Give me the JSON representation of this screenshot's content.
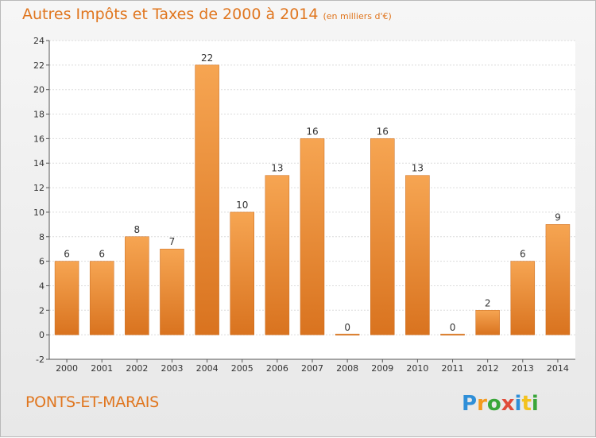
{
  "header": {
    "title": "Autres Impôts et Taxes de 2000 à 2014",
    "unit": "(en milliers d'€)"
  },
  "footer": {
    "town": "PONTS-ET-MARAIS",
    "logo_text": "Proxiti"
  },
  "colors": {
    "accent": "#e0761f",
    "bar_light": "#f6a552",
    "bar_dark": "#d9731f",
    "axis": "#555555"
  },
  "chart_data": {
    "type": "bar",
    "title": "Autres Impôts et Taxes de 2000 à 2014",
    "subtitle": "(en milliers d'€)",
    "xlabel": "",
    "ylabel": "",
    "categories": [
      "2000",
      "2001",
      "2002",
      "2003",
      "2004",
      "2005",
      "2006",
      "2007",
      "2008",
      "2009",
      "2010",
      "2011",
      "2012",
      "2013",
      "2014"
    ],
    "values": [
      6,
      6,
      8,
      7,
      22,
      10,
      13,
      16,
      0,
      16,
      13,
      0,
      2,
      6,
      9
    ],
    "ylim": [
      -2,
      24
    ],
    "yticks": [
      -2,
      0,
      2,
      4,
      6,
      8,
      10,
      12,
      14,
      16,
      18,
      20,
      22,
      24
    ],
    "grid": true,
    "legend": "none"
  }
}
